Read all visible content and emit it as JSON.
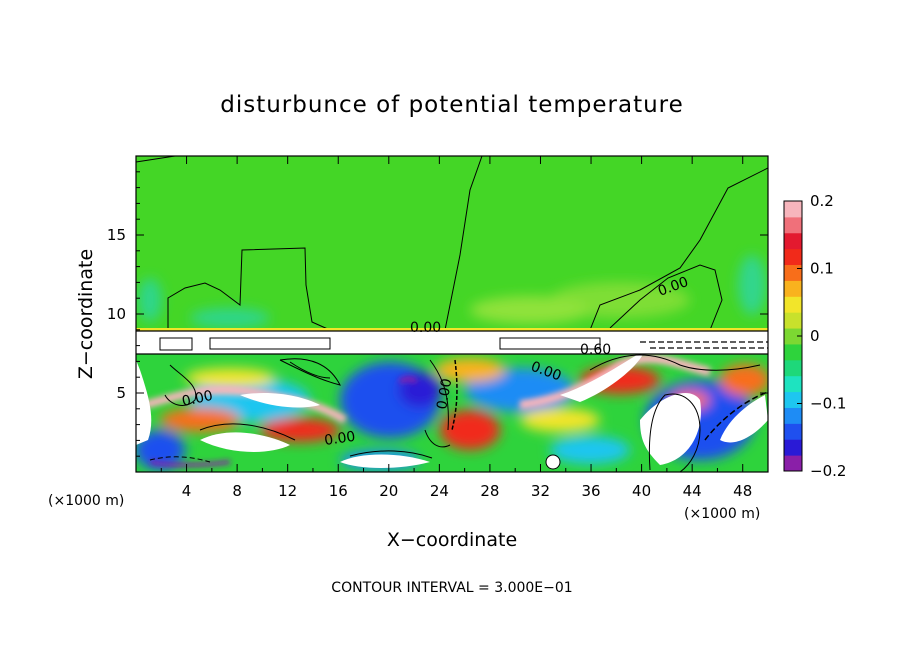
{
  "chart_data": {
    "type": "heatmap",
    "title": "disturbunce of potential temperature",
    "xlabel": "X−coordinate",
    "ylabel": "Z−coordinate",
    "x_unit_left": "(×1000 m)",
    "x_unit_right": "(×1000 m)",
    "xlim": [
      0,
      50
    ],
    "ylim": [
      0,
      20
    ],
    "x_ticks": [
      4,
      8,
      12,
      16,
      20,
      24,
      28,
      32,
      36,
      40,
      44,
      48
    ],
    "x_tick_labels": [
      "4",
      "8",
      "12",
      "16",
      "20",
      "24",
      "28",
      "32",
      "36",
      "40",
      "44",
      "48"
    ],
    "y_ticks": [
      5,
      10,
      15
    ],
    "y_tick_labels": [
      "5",
      "10",
      "15"
    ],
    "colorbar": {
      "range": [
        -0.2,
        0.2
      ],
      "ticks": [
        0.2,
        0.1,
        0,
        -0.1,
        -0.2
      ],
      "tick_labels": [
        "0.2",
        "0.1",
        "0",
        "−0.1",
        "−0.2"
      ],
      "colors": [
        "#8a1fa8",
        "#2a1ad6",
        "#1f50ef",
        "#1e8cf5",
        "#1ec6f0",
        "#1ee3c0",
        "#1ed87a",
        "#2ed33c",
        "#7cd832",
        "#c8e12c",
        "#f2e52a",
        "#f9b21e",
        "#f86e1a",
        "#f12a1a",
        "#e3192f",
        "#f0707a",
        "#f7b5bc"
      ]
    },
    "contour_labels": [
      "0.00",
      "0.00",
      "0.00",
      "0.00",
      "0.00",
      "0.00",
      "0.60"
    ],
    "annotation": "CONTOUR INTERVAL = 3.000E−01"
  }
}
